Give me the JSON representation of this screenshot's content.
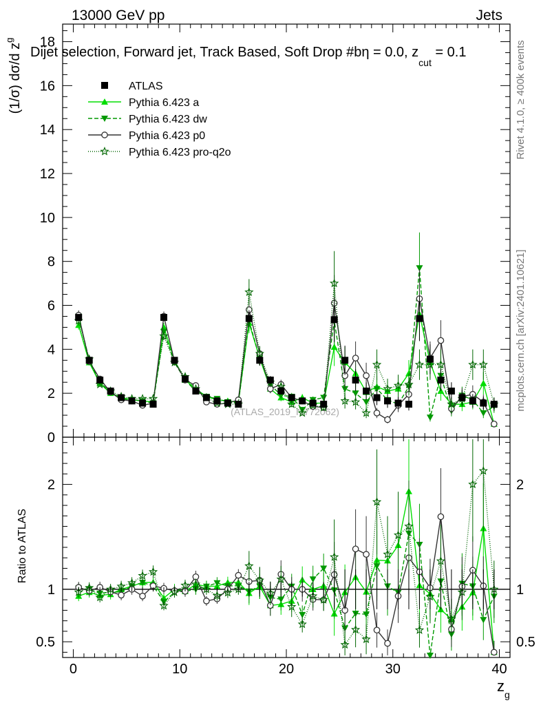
{
  "header": {
    "energy": "13000 GeV pp",
    "category": "Jets",
    "selection_prefix": "Dijet selection, Forward jet, Track Based, Soft Drop #b",
    "eta": "η = 0.0, z",
    "zcut_sub": "cut",
    "zcut_tail": " = 0.1",
    "side_rivet": "Rivet 4.1.0, ≥ 400k events",
    "side_mcplots": "mcplots.cern.ch [arXiv:2401.10621]",
    "watermark": "(ATLAS_2019_I1772062)"
  },
  "chart_data": {
    "type": "line",
    "title": "Dijet selection, Forward jet, Track Based, Soft Drop #b η = 0.0, z_cut = 0.1",
    "ylabel_main": "(1/σ) dσ/d z",
    "ylabel_main_sub": "g",
    "ylabel_ratio": "Ratio to ATLAS",
    "xlabel": "z",
    "xlabel_sub": "g",
    "xlim": [
      -1,
      41
    ],
    "ylim": [
      0,
      18.8
    ],
    "ratio_ylim": [
      0.35,
      2.45
    ],
    "xticks": [
      0,
      10,
      20,
      30,
      40
    ],
    "yticks": [
      0,
      2,
      4,
      6,
      8,
      10,
      12,
      14,
      16,
      18
    ],
    "ratio_yticks": [
      0.5,
      1,
      2
    ],
    "x": [
      0.5,
      1.5,
      2.5,
      3.5,
      4.5,
      5.5,
      6.5,
      7.5,
      8.5,
      9.5,
      10.5,
      11.5,
      12.5,
      13.5,
      14.5,
      15.5,
      16.5,
      17.5,
      18.5,
      19.5,
      20.5,
      21.5,
      22.5,
      23.5,
      24.5,
      25.5,
      26.5,
      27.5,
      28.5,
      29.5,
      30.5,
      31.5,
      32.5,
      33.5,
      34.5,
      35.5,
      36.5,
      37.5,
      38.5,
      39.5
    ],
    "legend": [
      "ATLAS",
      "Pythia 6.423 a",
      "Pythia 6.423 dw",
      "Pythia 6.423 p0",
      "Pythia 6.423 pro-q2o"
    ],
    "series": [
      {
        "name": "ATLAS",
        "color": "#000000",
        "marker": "square",
        "dash": "none",
        "values": [
          5.45,
          3.5,
          2.6,
          2.1,
          1.8,
          1.65,
          1.55,
          1.5,
          5.45,
          3.5,
          2.65,
          2.1,
          1.8,
          1.65,
          1.55,
          1.5,
          5.4,
          3.5,
          2.6,
          2.1,
          1.8,
          1.65,
          1.55,
          1.5,
          5.35,
          3.5,
          2.6,
          2.1,
          1.8,
          1.65,
          1.55,
          1.5,
          5.4,
          3.55,
          2.6,
          2.1,
          1.8,
          1.65,
          1.55,
          1.5
        ]
      },
      {
        "name": "Pythia 6.423 a",
        "color": "#00dd00",
        "marker": "triangle-up",
        "dash": "none",
        "values": [
          5.1,
          3.4,
          2.45,
          2.0,
          1.8,
          1.7,
          1.65,
          1.6,
          5.0,
          3.5,
          2.6,
          2.2,
          1.85,
          1.7,
          1.65,
          1.6,
          5.2,
          3.6,
          2.2,
          1.8,
          1.6,
          1.8,
          1.55,
          1.55,
          4.1,
          3.4,
          2.9,
          2.05,
          2.3,
          2.1,
          2.2,
          2.9,
          5.6,
          3.4,
          2.1,
          1.5,
          1.5,
          1.6,
          2.45,
          0.6
        ]
      },
      {
        "name": "Pythia 6.423 dw",
        "color": "#009900",
        "marker": "triangle-down",
        "dash": "6,3",
        "values": [
          5.5,
          3.5,
          2.5,
          2.05,
          1.75,
          1.7,
          1.65,
          1.55,
          4.8,
          3.4,
          2.6,
          2.1,
          1.85,
          1.75,
          1.6,
          1.55,
          5.3,
          3.6,
          2.4,
          1.9,
          1.85,
          1.25,
          1.7,
          1.8,
          5.3,
          2.2,
          2.0,
          1.6,
          2.2,
          1.7,
          1.5,
          2.3,
          7.7,
          0.9,
          2.8,
          1.2,
          1.9,
          1.7,
          1.1,
          1.4
        ]
      },
      {
        "name": "Pythia 6.423 p0",
        "color": "#333333",
        "marker": "circle-open",
        "dash": "none",
        "values": [
          5.55,
          3.45,
          2.65,
          2.05,
          1.7,
          1.65,
          1.45,
          1.55,
          5.5,
          3.45,
          2.6,
          2.35,
          1.6,
          1.5,
          1.55,
          1.7,
          5.8,
          3.8,
          2.2,
          2.4,
          1.8,
          1.65,
          1.4,
          1.35,
          6.1,
          2.8,
          3.6,
          2.8,
          1.1,
          0.8,
          1.45,
          1.95,
          6.3,
          3.6,
          4.4,
          1.3,
          1.85,
          1.95,
          1.6,
          0.6
        ]
      },
      {
        "name": "Pythia 6.423 pro-q2o",
        "color": "#006600",
        "marker": "star",
        "dash": "1,2",
        "values": [
          5.3,
          3.55,
          2.4,
          2.1,
          1.85,
          1.75,
          1.75,
          1.75,
          4.6,
          3.4,
          2.75,
          2.2,
          1.8,
          1.55,
          1.5,
          1.5,
          6.6,
          3.8,
          2.5,
          2.3,
          1.5,
          1.1,
          1.45,
          1.35,
          7.0,
          1.65,
          1.6,
          1.1,
          3.3,
          2.2,
          2.35,
          2.4,
          3.3,
          3.3,
          3.3,
          1.5,
          1.75,
          3.3,
          3.3,
          1.5
        ]
      }
    ]
  }
}
